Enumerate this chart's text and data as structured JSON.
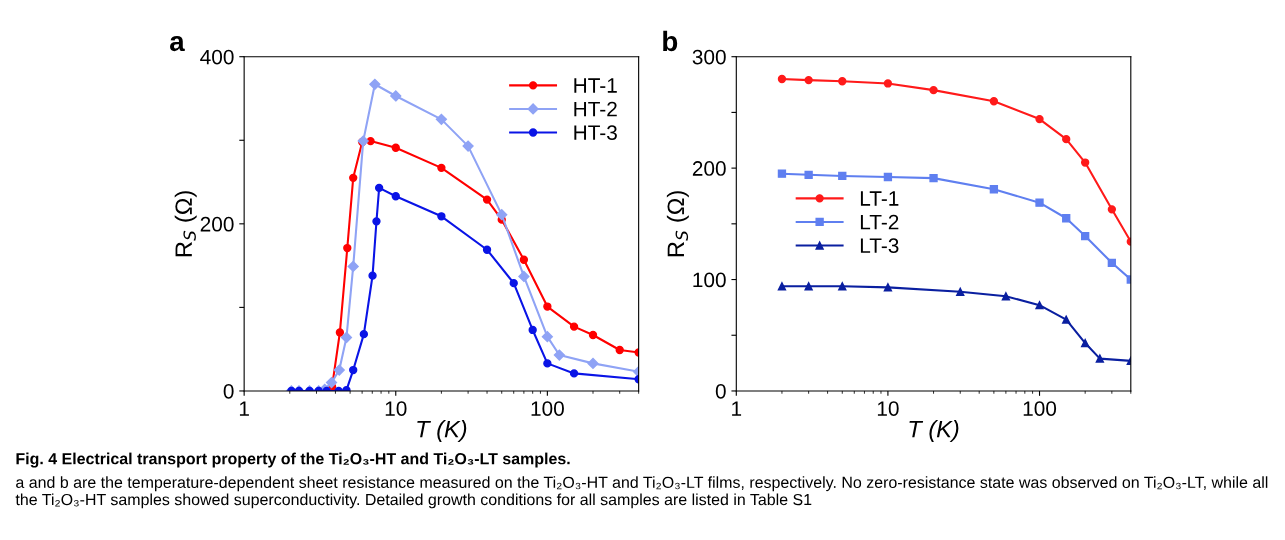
{
  "chart_data": [
    {
      "type": "line",
      "title": "a",
      "xlabel": "T (K)",
      "ylabel": "R$_{S}$ (Ω)",
      "log": "x",
      "xlim": [
        1,
        400
      ],
      "xticks": [
        1,
        10,
        100
      ],
      "ylim": [
        0,
        400
      ],
      "yticks": [
        0,
        {
          "value": 100,
          "label": null
        },
        200,
        {
          "value": 300,
          "label": null
        },
        400
      ],
      "legend": "top right",
      "grid": false,
      "line_style": "solid",
      "series": [
        {
          "name": "HT-1",
          "color": "#ff0000",
          "marker": "circle",
          "x": [
            3.35,
            3.6,
            3.8,
            4.28,
            4.79,
            5.24,
            6.01,
            6.82,
            10,
            20,
            40,
            50,
            70,
            100,
            150,
            200,
            300,
            400
          ],
          "values": [
            0,
            0,
            5,
            70,
            171,
            255,
            298,
            299,
            291,
            267,
            229,
            205,
            157,
            101,
            77,
            67,
            49,
            46
          ]
        },
        {
          "name": "HT-2",
          "color": "#8fa3f5",
          "marker": "diamond",
          "x": [
            2.05,
            2.3,
            2.7,
            3.1,
            3.4,
            3.77,
            4.24,
            4.73,
            5.24,
            6.1,
            7.28,
            10,
            20,
            30,
            50,
            70,
            100,
            120,
            200,
            400
          ],
          "values": [
            0,
            0,
            0,
            0,
            2,
            10,
            25,
            64,
            149,
            299,
            367,
            353,
            325,
            293,
            211,
            137,
            65,
            43,
            33,
            23
          ]
        },
        {
          "name": "HT-3",
          "color": "#0a14e6",
          "marker": "circle",
          "x": [
            2.05,
            2.3,
            2.7,
            3.1,
            3.5,
            4.2,
            4.73,
            5.24,
            6.16,
            7.03,
            7.46,
            7.77,
            10,
            20,
            40,
            60,
            80,
            100,
            150,
            400
          ],
          "values": [
            0,
            0,
            0,
            0,
            0,
            0,
            1,
            25,
            68,
            138,
            203,
            243,
            233,
            209,
            169,
            129,
            73,
            33,
            21,
            14
          ]
        }
      ],
      "annotations": [
        "Fig. 4 Electrical transport property of the Ti₂O₃-HT and Ti₂O₃-LT samples.",
        "a and b are the temperature-dependent sheet resistance measured on the Ti₂O₃-HT and Ti₂O₃-LT films, respectively. No zero-resistance state was observed on Ti₂O₃-LT, while all the Ti₂O₃-HT samples showed superconductivity. Detailed growth conditions for all samples are listed in Table S1"
      ]
    },
    {
      "type": "line",
      "title": "b",
      "xlabel": "T (K)",
      "ylabel": "R$_{S}$ (Ω)",
      "log": "x",
      "xlim": [
        1,
        400
      ],
      "xticks": [
        1,
        10,
        100
      ],
      "ylim": [
        0,
        300
      ],
      "yticks": [
        0,
        {
          "value": 50,
          "label": null
        },
        100,
        {
          "value": 150,
          "label": null
        },
        200,
        {
          "value": 250,
          "label": null
        },
        300
      ],
      "legend": "center left",
      "grid": false,
      "line_style": "solid",
      "series": [
        {
          "name": "LT-1",
          "color": "#ff1a1a",
          "marker": "circle",
          "x": [
            2,
            3,
            5,
            10,
            20,
            50,
            100,
            150,
            200,
            300,
            400
          ],
          "values": [
            280,
            279,
            278,
            276,
            270,
            260,
            244,
            226,
            205,
            163,
            134
          ]
        },
        {
          "name": "LT-2",
          "color": "#5f7ff0",
          "marker": "square",
          "x": [
            2,
            3,
            5,
            10,
            20,
            50,
            100,
            150,
            200,
            300,
            400
          ],
          "values": [
            195,
            194,
            193,
            192,
            191,
            181,
            169,
            155,
            139,
            115,
            100
          ]
        },
        {
          "name": "LT-3",
          "color": "#0a1fa0",
          "marker": "triangle",
          "x": [
            2,
            3,
            5,
            10,
            30,
            60,
            100,
            150,
            200,
            250,
            400
          ],
          "values": [
            94,
            94,
            94,
            93,
            89,
            85,
            77,
            64,
            43,
            29,
            27
          ]
        }
      ]
    }
  ]
}
